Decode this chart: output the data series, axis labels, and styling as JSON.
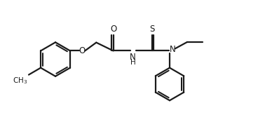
{
  "bg_color": "#ffffff",
  "line_color": "#1a1a1a",
  "line_width": 1.6,
  "fig_width": 3.88,
  "fig_height": 1.94,
  "dpi": 100,
  "xlim": [
    0,
    11
  ],
  "ylim": [
    -3.2,
    3.0
  ]
}
